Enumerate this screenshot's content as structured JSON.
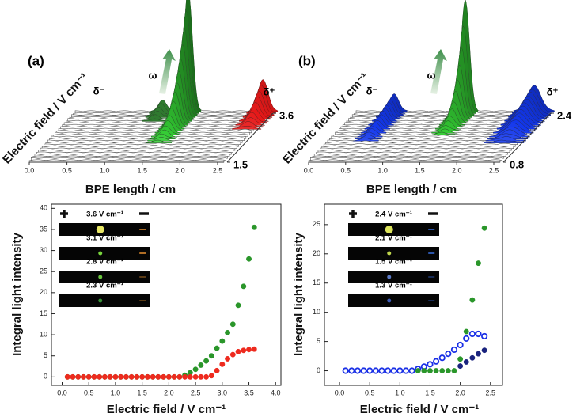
{
  "chart_data": [
    {
      "type": "waterfall",
      "panel_label": "(a)",
      "xlabel": "BPE length / cm",
      "ylabel": "Electric field / V cm⁻¹",
      "xlim": [
        0,
        2.5
      ],
      "xticks": [
        {
          "value": 0,
          "label": "0.0"
        },
        0.5,
        {
          "value": 1,
          "label": "1.0"
        },
        1.5,
        {
          "value": 2,
          "label": "2.0"
        },
        2.5
      ],
      "field_lim": [
        1.5,
        3.6
      ],
      "field_ticks": [
        1.5,
        3.6
      ],
      "annotations": [
        "ω",
        "δ⁻",
        "δ⁺"
      ]
    },
    {
      "type": "waterfall",
      "panel_label": "(b)",
      "xlabel": "BPE length / cm",
      "ylabel": "Electric field / V cm⁻¹",
      "xlim": [
        0,
        2.5
      ],
      "xticks": [
        {
          "value": 0,
          "label": "0.0"
        },
        0.5,
        {
          "value": 1,
          "label": "1.0"
        },
        1.5,
        {
          "value": 2,
          "label": "2.0"
        },
        2.5
      ],
      "field_lim": [
        0.8,
        2.4
      ],
      "field_ticks": [
        0.8,
        2.4
      ],
      "annotations": [
        "ω",
        "δ⁻",
        "δ⁺"
      ]
    },
    {
      "type": "scatter",
      "xlabel": "Electric field / V cm⁻¹",
      "ylabel": "Integral light intensity",
      "xlim": [
        -0.2,
        4.1
      ],
      "ylim": [
        -2,
        41
      ],
      "xticks": [
        {
          "value": 0,
          "label": "0.0"
        },
        0.5,
        {
          "value": 1,
          "label": "1.0"
        },
        1.5,
        {
          "value": 2,
          "label": "2.0"
        },
        2.5,
        {
          "value": 3,
          "label": "3.0"
        },
        3.5,
        {
          "value": 4,
          "label": "4.0"
        }
      ],
      "yticks": [
        0,
        5,
        10,
        15,
        20,
        25,
        30,
        35,
        40
      ],
      "inset_labels": [
        "3.6 V cm⁻¹",
        "3.1 V cm⁻¹",
        "2.8 V cm⁻¹",
        "2.3 V cm⁻¹"
      ],
      "x": [
        0.1,
        0.2,
        0.3,
        0.4,
        0.5,
        0.6,
        0.7,
        0.8,
        0.9,
        1.0,
        1.1,
        1.2,
        1.3,
        1.4,
        1.5,
        1.6,
        1.7,
        1.8,
        1.9,
        2.0,
        2.1,
        2.2,
        2.3,
        2.4,
        2.5,
        2.6,
        2.7,
        2.8,
        2.9,
        3.0,
        3.1,
        3.2,
        3.3,
        3.4,
        3.5,
        3.6
      ],
      "series": [
        {
          "color": "#2a962a",
          "filled": true,
          "values": [
            0,
            0,
            0,
            0,
            0,
            0,
            0,
            0,
            0,
            0,
            0,
            0,
            0,
            0,
            0,
            0,
            0,
            0,
            0,
            0,
            0,
            0,
            0.4,
            1,
            1.8,
            2.8,
            3.8,
            5,
            6.8,
            8.5,
            10.5,
            12.5,
            17,
            21.5,
            28,
            35.5
          ]
        },
        {
          "color": "#ee2a1e",
          "filled": true,
          "values": [
            0,
            0,
            0,
            0,
            0,
            0,
            0,
            0,
            0,
            0,
            0,
            0,
            0,
            0,
            0,
            0,
            0,
            0,
            0,
            0,
            0,
            0,
            0,
            0,
            0,
            0,
            0,
            0.3,
            1.5,
            3,
            4.3,
            5.3,
            6,
            6.3,
            6.5,
            6.6
          ]
        }
      ]
    },
    {
      "type": "scatter",
      "xlabel": "Electric field / V cm⁻¹",
      "ylabel": "Integral light intensity",
      "xlim": [
        -0.25,
        2.7
      ],
      "ylim": [
        -2.5,
        28.5
      ],
      "xticks": [
        {
          "value": 0,
          "label": "0.0"
        },
        0.5,
        {
          "value": 1,
          "label": "1.0"
        },
        1.5,
        {
          "value": 2,
          "label": "2.0"
        },
        2.5
      ],
      "yticks": [
        0,
        5,
        10,
        15,
        20,
        25
      ],
      "inset_labels": [
        "2.4 V cm⁻¹",
        "2.1 V cm⁻¹",
        "1.5 V cm⁻¹",
        "1.3 V cm⁻¹"
      ],
      "x": [
        0.1,
        0.2,
        0.3,
        0.4,
        0.5,
        0.6,
        0.7,
        0.8,
        0.9,
        1.0,
        1.1,
        1.2,
        1.3,
        1.4,
        1.5,
        1.6,
        1.7,
        1.8,
        1.9,
        2.0,
        2.1,
        2.2,
        2.3,
        2.4
      ],
      "series": [
        {
          "color": "#1a30e6",
          "filled": false,
          "values": [
            0,
            0,
            0,
            0,
            0,
            0,
            0,
            0,
            0,
            0,
            0,
            0,
            0.3,
            0.7,
            1.1,
            1.6,
            2.2,
            2.9,
            3.6,
            4.4,
            5.5,
            6.3,
            6.3,
            5.9
          ]
        },
        {
          "color": "#2a962a",
          "filled": true,
          "values": [
            null,
            null,
            null,
            null,
            null,
            null,
            null,
            null,
            null,
            null,
            null,
            null,
            0,
            0,
            0,
            0,
            0,
            0,
            0,
            2,
            6.7,
            12.1,
            18.4,
            24.4
          ]
        },
        {
          "color": "#1a237e",
          "filled": true,
          "values": [
            null,
            null,
            null,
            null,
            null,
            null,
            null,
            null,
            null,
            null,
            null,
            null,
            null,
            null,
            null,
            null,
            null,
            null,
            null,
            0.8,
            1.5,
            2.2,
            2.9,
            3.5
          ]
        }
      ]
    }
  ]
}
